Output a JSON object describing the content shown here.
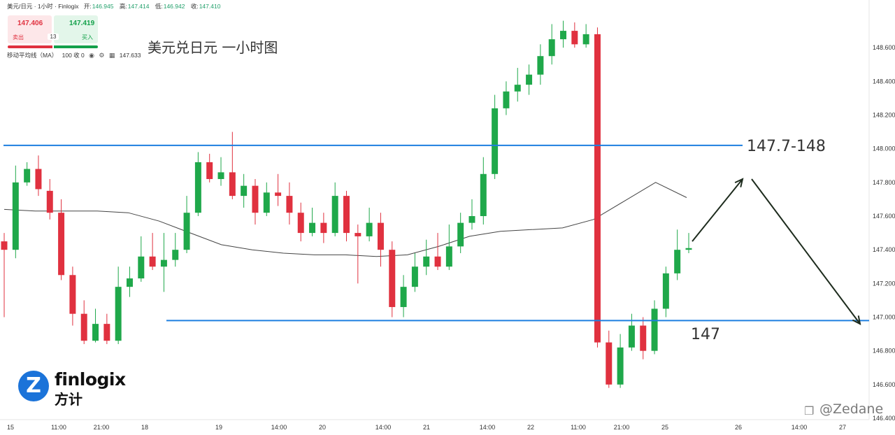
{
  "header": {
    "symbol": "美元/日元 · 1小时 · Finlogix",
    "open_label": "开:",
    "open": "146.945",
    "high_label": "高:",
    "high": "147.414",
    "low_label": "低:",
    "low": "146.942",
    "close_label": "收:",
    "close": "147.410"
  },
  "trade": {
    "sell_price": "147.406",
    "buy_price": "147.419",
    "sell_label": "卖出",
    "buy_label": "买入",
    "spread": "13"
  },
  "indicator": {
    "name": "移动平均线（MA）",
    "params": "100 收 0",
    "value": "147.633"
  },
  "logo": {
    "mark": "Z",
    "text": "finlogix",
    "cn": "方计"
  },
  "watermark": "@Zedane",
  "colors": {
    "up": "#1fa84a",
    "down": "#e0313f",
    "level_line": "#1e7fe0",
    "ma": "#444444",
    "arrow": "#1d2b1d"
  },
  "chart_data": {
    "type": "candlestick",
    "title": "美元兑日元 一小时图",
    "ylim": [
      146.4,
      148.8
    ],
    "y_ticks": [
      "148.600",
      "148.400",
      "148.200",
      "148.000",
      "147.800",
      "147.600",
      "147.400",
      "147.200",
      "147.000",
      "146.800",
      "146.600",
      "146.400"
    ],
    "x_ticks": [
      "15",
      "11:00",
      "21:00",
      "18",
      "19",
      "14:00",
      "20",
      "14:00",
      "21",
      "14:00",
      "22",
      "11:00",
      "21:00",
      "25",
      "26",
      "14:00",
      "27"
    ],
    "levels": [
      {
        "name": "resistance",
        "value": 148.02
      },
      {
        "name": "support",
        "value": 146.98
      }
    ],
    "annotations": [
      {
        "text": "147.7-148"
      },
      {
        "text": "147"
      }
    ],
    "projection_path": [
      147.45,
      147.82,
      146.96
    ],
    "ma_period": 100,
    "ma": [
      147.64,
      147.63,
      147.63,
      147.63,
      147.62,
      147.57,
      147.5,
      147.43,
      147.4,
      147.38,
      147.37,
      147.37,
      147.36,
      147.37,
      147.42,
      147.48,
      147.51,
      147.52,
      147.53,
      147.58,
      147.69,
      147.8,
      147.71
    ],
    "candles": [
      [
        147.45,
        147.4,
        147.0,
        147.5,
        146.5
      ],
      [
        147.4,
        147.8,
        147.35,
        147.9,
        147.3
      ],
      [
        147.8,
        147.88,
        147.78,
        147.92,
        147.7
      ],
      [
        147.88,
        147.76,
        147.72,
        147.96,
        147.65
      ],
      [
        147.75,
        147.62,
        147.58,
        147.82,
        147.5
      ],
      [
        147.62,
        147.25,
        147.22,
        147.7,
        147.2
      ],
      [
        147.25,
        147.02,
        146.95,
        147.3,
        146.85
      ],
      [
        147.02,
        146.86,
        146.84,
        147.1,
        146.75
      ],
      [
        146.86,
        146.96,
        146.85,
        147.05,
        146.75
      ],
      [
        146.96,
        146.86,
        146.84,
        147.02,
        146.76
      ],
      [
        146.86,
        147.18,
        146.84,
        147.3,
        146.8
      ],
      [
        147.18,
        147.23,
        147.12,
        147.3,
        147.05
      ],
      [
        147.23,
        147.36,
        147.21,
        147.48,
        147.12
      ],
      [
        147.36,
        147.3,
        147.28,
        147.5,
        147.2
      ],
      [
        147.3,
        147.34,
        147.15,
        147.5,
        147.1
      ],
      [
        147.34,
        147.4,
        147.3,
        147.5,
        147.25
      ],
      [
        147.4,
        147.62,
        147.38,
        147.72,
        147.3
      ],
      [
        147.62,
        147.92,
        147.6,
        147.98,
        147.55
      ],
      [
        147.92,
        147.82,
        147.8,
        147.97,
        147.7
      ],
      [
        147.82,
        147.86,
        147.78,
        147.95,
        147.68
      ],
      [
        147.86,
        147.72,
        147.7,
        148.1,
        147.62
      ],
      [
        147.72,
        147.78,
        147.65,
        147.85,
        147.62
      ],
      [
        147.78,
        147.62,
        147.55,
        147.82,
        147.5
      ],
      [
        147.62,
        147.74,
        147.6,
        147.8,
        147.52
      ],
      [
        147.74,
        147.72,
        147.66,
        147.85,
        147.6
      ],
      [
        147.72,
        147.62,
        147.55,
        147.8,
        147.48
      ],
      [
        147.62,
        147.5,
        147.45,
        147.68,
        147.4
      ],
      [
        147.5,
        147.56,
        147.48,
        147.65,
        147.44
      ],
      [
        147.56,
        147.5,
        147.44,
        147.62,
        147.4
      ],
      [
        147.5,
        147.72,
        147.48,
        147.8,
        147.45
      ],
      [
        147.72,
        147.5,
        147.45,
        147.75,
        147.42
      ],
      [
        147.5,
        147.48,
        147.2,
        147.55,
        147.15
      ],
      [
        147.48,
        147.56,
        147.45,
        147.65,
        147.4
      ],
      [
        147.56,
        147.4,
        147.3,
        147.62,
        147.25
      ],
      [
        147.4,
        147.06,
        147.0,
        147.45,
        146.87
      ],
      [
        147.06,
        147.18,
        147.0,
        147.25,
        146.95
      ],
      [
        147.18,
        147.3,
        147.15,
        147.38,
        147.1
      ],
      [
        147.3,
        147.36,
        147.25,
        147.46,
        147.2
      ],
      [
        147.36,
        147.3,
        147.28,
        147.5,
        147.22
      ],
      [
        147.3,
        147.42,
        147.28,
        147.55,
        147.22
      ],
      [
        147.42,
        147.56,
        147.38,
        147.62,
        147.3
      ],
      [
        147.56,
        147.6,
        147.52,
        147.7,
        147.45
      ],
      [
        147.6,
        147.85,
        147.55,
        147.95,
        147.5
      ],
      [
        147.85,
        148.24,
        147.82,
        148.32,
        147.8
      ],
      [
        148.24,
        148.34,
        148.2,
        148.4,
        148.18
      ],
      [
        148.34,
        148.38,
        148.28,
        148.48,
        148.2
      ],
      [
        148.38,
        148.44,
        148.32,
        148.5,
        148.28
      ],
      [
        148.44,
        148.55,
        148.38,
        148.62,
        148.34
      ],
      [
        148.55,
        148.65,
        148.5,
        148.74,
        148.45
      ],
      [
        148.65,
        148.7,
        148.6,
        148.76,
        148.55
      ],
      [
        148.7,
        148.62,
        148.6,
        148.75,
        148.5
      ],
      [
        148.62,
        148.68,
        148.6,
        148.74,
        148.55
      ],
      [
        148.68,
        146.85,
        146.82,
        148.72,
        146.82
      ],
      [
        146.85,
        146.6,
        146.58,
        146.92,
        146.58
      ],
      [
        146.6,
        146.82,
        146.58,
        146.9,
        146.55
      ],
      [
        146.82,
        146.95,
        146.8,
        147.02,
        146.75
      ],
      [
        146.95,
        146.8,
        146.75,
        147.0,
        146.72
      ],
      [
        146.8,
        147.05,
        146.78,
        147.1,
        146.75
      ],
      [
        147.05,
        147.26,
        147.0,
        147.3,
        146.98
      ],
      [
        147.26,
        147.4,
        147.22,
        147.52,
        147.2
      ],
      [
        147.4,
        147.41,
        147.38,
        147.5,
        147.36
      ]
    ]
  }
}
